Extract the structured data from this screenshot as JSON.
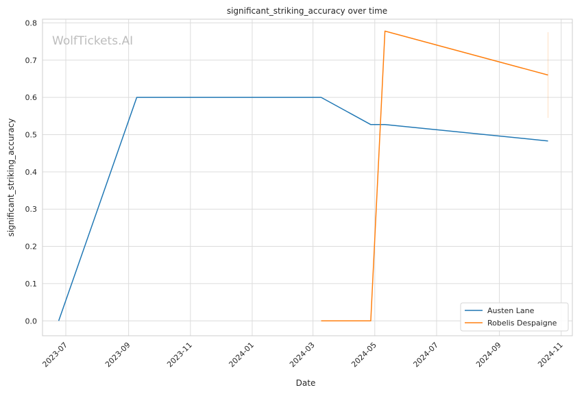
{
  "chart_data": {
    "type": "line",
    "title": "significant_striking_accuracy over time",
    "xlabel": "Date",
    "ylabel": "significant_striking_accuracy",
    "watermark": "WolfTickets.AI",
    "x_ticks": [
      "2023-07",
      "2023-09",
      "2023-11",
      "2024-01",
      "2024-03",
      "2024-05",
      "2024-07",
      "2024-09",
      "2024-11"
    ],
    "y_ticks": [
      "0.0",
      "0.1",
      "0.2",
      "0.3",
      "0.4",
      "0.5",
      "0.6",
      "0.7",
      "0.8"
    ],
    "xlim": [
      "2023-06-08",
      "2024-11-12"
    ],
    "ylim": [
      -0.04,
      0.81
    ],
    "grid": true,
    "legend_position": "bottom-right",
    "series": [
      {
        "name": "Austen Lane",
        "color": "#1f77b4",
        "points": [
          {
            "x": "2023-06-24",
            "y": 0.0
          },
          {
            "x": "2023-09-09",
            "y": 0.6
          },
          {
            "x": "2024-03-09",
            "y": 0.6
          },
          {
            "x": "2024-04-27",
            "y": 0.527
          },
          {
            "x": "2024-05-11",
            "y": 0.527
          },
          {
            "x": "2024-10-19",
            "y": 0.483
          }
        ]
      },
      {
        "name": "Robelis Despaigne",
        "color": "#ff7f0e",
        "points": [
          {
            "x": "2024-03-09",
            "y": 0.0
          },
          {
            "x": "2024-04-27",
            "y": 0.0
          },
          {
            "x": "2024-05-11",
            "y": 0.778
          },
          {
            "x": "2024-10-19",
            "y": 0.66
          }
        ],
        "error_band": {
          "x": "2024-10-19",
          "low": 0.545,
          "high": 0.775
        }
      }
    ]
  }
}
